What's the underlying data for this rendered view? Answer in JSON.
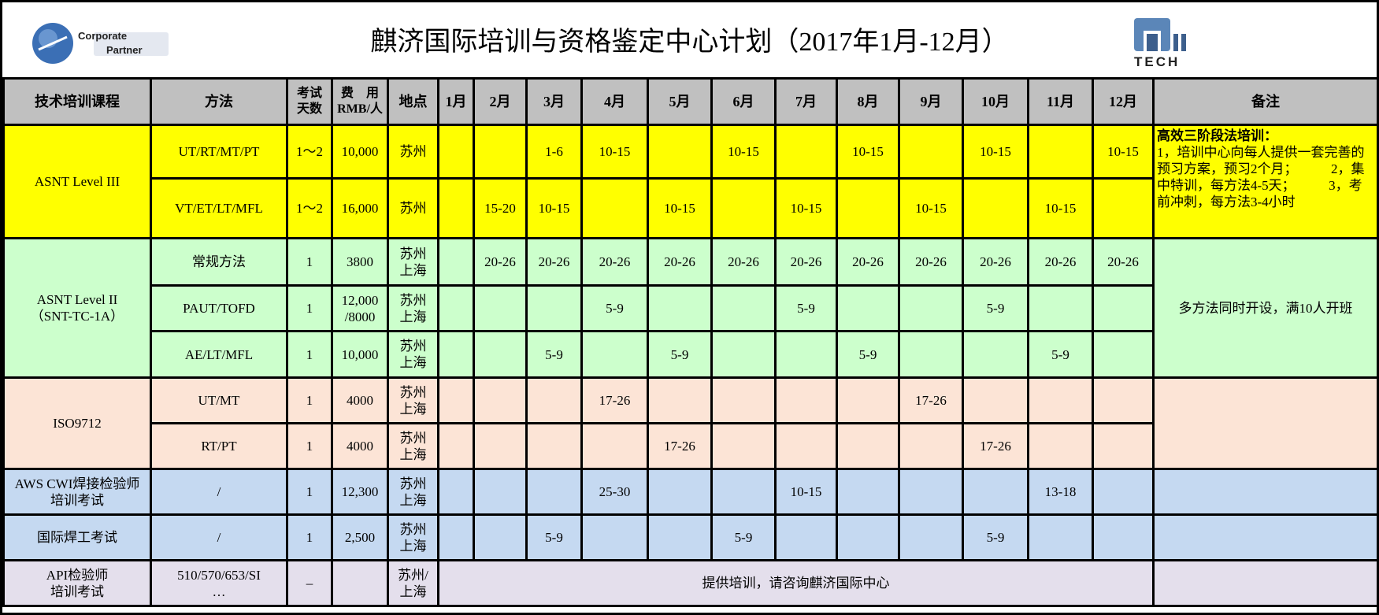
{
  "title": "麒济国际培训与资格鉴定中心计划（2017年1月-12月）",
  "logos": {
    "left": "ASNT Corporate Partner",
    "right": "QJ TECH"
  },
  "colors": {
    "header": "#c0c0c0",
    "level3": "#ffff00",
    "level2": "#ccffcc",
    "iso": "#fce4d6",
    "aws": "#c5d9f1",
    "api": "#e4dfec"
  },
  "headers": {
    "course": "技术培训课程",
    "method": "方法",
    "days": "考试天数",
    "fee": "费　用RMB/人",
    "location": "地点",
    "months": [
      "1月",
      "2月",
      "3月",
      "4月",
      "5月",
      "6月",
      "7月",
      "8月",
      "9月",
      "10月",
      "11月",
      "12月"
    ],
    "note": "备注"
  },
  "groups": [
    {
      "course": "ASNT Level III",
      "color": "#ffff00",
      "note_title": "高效三阶段法培训：",
      "note": "1，培训中心向每人提供一套完善的预习方案，预习2个月；　　　2，集中特训，每方法4-5天；　　　3，考前冲刺，每方法3-4小时",
      "rows": [
        {
          "method": "UT/RT/MT/PT",
          "days": "1～2",
          "fee": "10,000",
          "location": "苏州",
          "months": [
            "",
            "",
            "1-6",
            "10-15",
            "",
            "10-15",
            "",
            "10-15",
            "",
            "10-15",
            "",
            "10-15"
          ]
        },
        {
          "method": "VT/ET/LT/MFL",
          "days": "1～2",
          "fee": "16,000",
          "location": "苏州",
          "months": [
            "",
            "15-20",
            "10-15",
            "",
            "10-15",
            "",
            "10-15",
            "",
            "10-15",
            "",
            "10-15",
            ""
          ]
        }
      ]
    },
    {
      "course": "ASNT Level II\n（SNT-TC-1A）",
      "color": "#ccffcc",
      "note_title": "",
      "note": "多方法同时开设，满10人开班",
      "rows": [
        {
          "method": "常规方法",
          "days": "1",
          "fee": "3800",
          "location": "苏州\n上海",
          "months": [
            "",
            "20-26",
            "20-26",
            "20-26",
            "20-26",
            "20-26",
            "20-26",
            "20-26",
            "20-26",
            "20-26",
            "20-26",
            "20-26"
          ]
        },
        {
          "method": "PAUT/TOFD",
          "days": "1",
          "fee": "12,000\n/8000",
          "location": "苏州\n上海",
          "months": [
            "",
            "",
            "",
            "5-9",
            "",
            "",
            "5-9",
            "",
            "",
            "5-9",
            "",
            ""
          ]
        },
        {
          "method": "AE/LT/MFL",
          "days": "1",
          "fee": "10,000",
          "location": "苏州\n上海",
          "months": [
            "",
            "",
            "5-9",
            "",
            "5-9",
            "",
            "",
            "5-9",
            "",
            "",
            "5-9",
            ""
          ]
        }
      ]
    },
    {
      "course": "ISO9712",
      "color": "#fce4d6",
      "note_title": "",
      "note": "",
      "rows": [
        {
          "method": "UT/MT",
          "days": "1",
          "fee": "4000",
          "location": "苏州\n上海",
          "months": [
            "",
            "",
            "",
            "17-26",
            "",
            "",
            "",
            "",
            "17-26",
            "",
            "",
            ""
          ]
        },
        {
          "method": "RT/PT",
          "days": "1",
          "fee": "4000",
          "location": "苏州\n上海",
          "months": [
            "",
            "",
            "",
            "",
            "17-26",
            "",
            "",
            "",
            "",
            "17-26",
            "",
            ""
          ]
        }
      ]
    },
    {
      "course": "AWS CWI焊接检验师\n培训考试",
      "color": "#c5d9f1",
      "note_title": "",
      "note": "",
      "rows": [
        {
          "method": "/",
          "days": "1",
          "fee": "12,300",
          "location": "苏州\n上海",
          "months": [
            "",
            "",
            "",
            "25-30",
            "",
            "",
            "10-15",
            "",
            "",
            "",
            "13-18",
            ""
          ]
        }
      ]
    },
    {
      "course": "国际焊工考试",
      "color": "#c5d9f1",
      "note_title": "",
      "note": "",
      "rows": [
        {
          "method": "/",
          "days": "1",
          "fee": "2,500",
          "location": "苏州\n上海",
          "months": [
            "",
            "",
            "5-9",
            "",
            "",
            "5-9",
            "",
            "",
            "",
            "5-9",
            "",
            ""
          ]
        }
      ]
    },
    {
      "course": "API检验师\n培训考试",
      "color": "#e4dfec",
      "note_title": "",
      "note": "",
      "rows": [
        {
          "method": "510/570/653/SI\n…",
          "days": "–",
          "fee": "",
          "location": "苏州/\n上海",
          "merged_months": "提供培训，请咨询麒济国际中心"
        }
      ]
    }
  ]
}
